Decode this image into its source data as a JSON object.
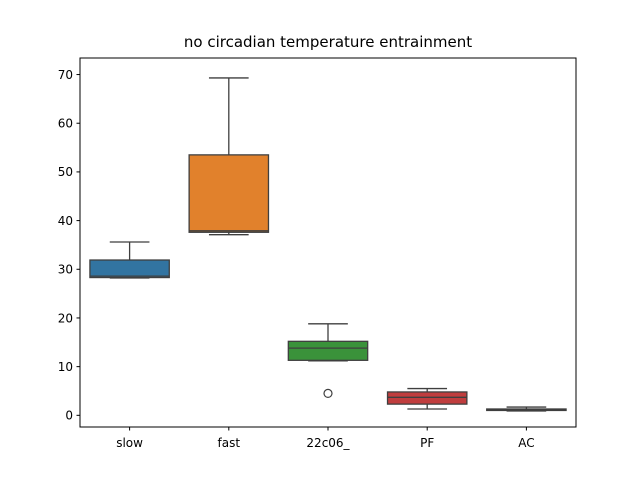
{
  "chart_data": {
    "type": "box",
    "title": "no circadian temperature entrainment",
    "xlabel": "",
    "ylabel": "",
    "ylim": [
      -2.4,
      73.4
    ],
    "yticks": [
      0,
      10,
      20,
      30,
      40,
      50,
      60,
      70
    ],
    "grid": false,
    "categories": [
      "slow",
      "fast",
      "22c06_",
      "PF",
      "AC"
    ],
    "boxes": [
      {
        "label": "slow",
        "color": "#3274a1",
        "whisker_low": 28.2,
        "q1": 28.3,
        "median": 28.6,
        "q3": 31.9,
        "whisker_high": 35.6,
        "outliers": []
      },
      {
        "label": "fast",
        "color": "#e1812c",
        "whisker_low": 37.1,
        "q1": 37.6,
        "median": 37.9,
        "q3": 53.5,
        "whisker_high": 69.3,
        "outliers": []
      },
      {
        "label": "22c06_",
        "color": "#3a923a",
        "whisker_low": 11.2,
        "q1": 11.3,
        "median": 13.8,
        "q3": 15.2,
        "whisker_high": 18.8,
        "outliers": [
          4.5
        ]
      },
      {
        "label": "PF",
        "color": "#c03d3e",
        "whisker_low": 1.3,
        "q1": 2.3,
        "median": 3.7,
        "q3": 4.8,
        "whisker_high": 5.5,
        "outliers": []
      },
      {
        "label": "AC",
        "color": "#9372b2",
        "whisker_low": 0.9,
        "q1": 1.0,
        "median": 1.1,
        "q3": 1.3,
        "whisker_high": 1.7,
        "outliers": []
      }
    ]
  }
}
